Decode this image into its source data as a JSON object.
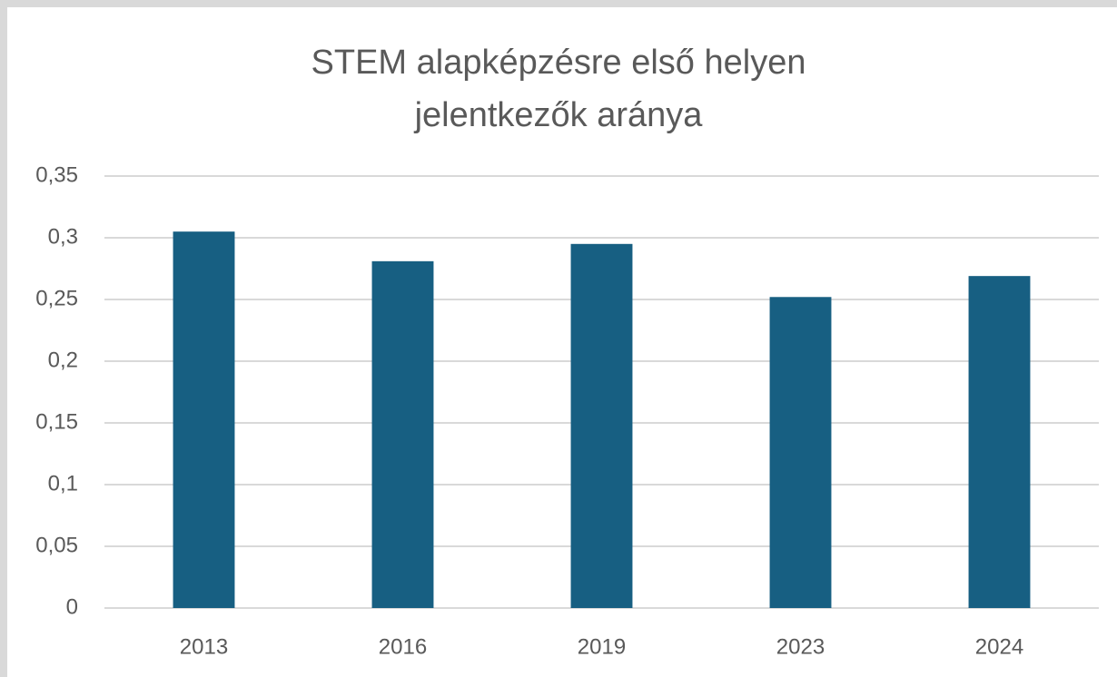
{
  "chart_data": {
    "type": "bar",
    "title": "STEM alapképzésre első helyen jelentkezők aránya",
    "categories": [
      "2013",
      "2016",
      "2019",
      "2023",
      "2024"
    ],
    "values": [
      0.305,
      0.281,
      0.295,
      0.252,
      0.269
    ],
    "color": "#175f82",
    "ylim": [
      0,
      0.35
    ],
    "yticks": [
      0,
      {
        "value": 0.05,
        "label": "0,05"
      },
      {
        "value": 0.1,
        "label": "0,1"
      },
      {
        "value": 0.15,
        "label": "0,15"
      },
      {
        "value": 0.2,
        "label": "0,2"
      },
      {
        "value": 0.25,
        "label": "0,25"
      },
      {
        "value": 0.3,
        "label": "0,3"
      },
      {
        "value": 0.35,
        "label": "0,35"
      }
    ],
    "grid": true
  }
}
